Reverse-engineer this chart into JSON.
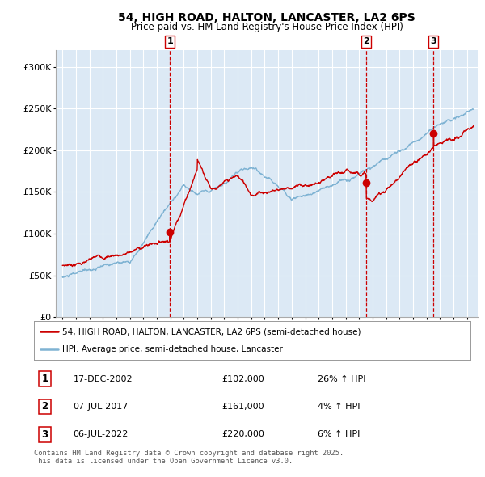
{
  "title": "54, HIGH ROAD, HALTON, LANCASTER, LA2 6PS",
  "subtitle": "Price paid vs. HM Land Registry's House Price Index (HPI)",
  "background_color": "#dce9f5",
  "plot_bg_color": "#dce9f5",
  "red_line_color": "#cc0000",
  "blue_line_color": "#7fb3d3",
  "sale_marker_color": "#cc0000",
  "vline_color_sold": "#cc0000",
  "ylim": [
    0,
    320000
  ],
  "yticks": [
    0,
    50000,
    100000,
    150000,
    200000,
    250000,
    300000
  ],
  "ytick_labels": [
    "£0",
    "£50K",
    "£100K",
    "£150K",
    "£200K",
    "£250K",
    "£300K"
  ],
  "legend_red_label": "54, HIGH ROAD, HALTON, LANCASTER, LA2 6PS (semi-detached house)",
  "legend_blue_label": "HPI: Average price, semi-detached house, Lancaster",
  "sale1_date": "17-DEC-2002",
  "sale1_price": "£102,000",
  "sale1_hpi": "26% ↑ HPI",
  "sale1_year": 2002.96,
  "sale1_price_val": 102000,
  "sale2_date": "07-JUL-2017",
  "sale2_price": "£161,000",
  "sale2_hpi": "4% ↑ HPI",
  "sale2_year": 2017.52,
  "sale2_price_val": 161000,
  "sale3_date": "06-JUL-2022",
  "sale3_price": "£220,000",
  "sale3_hpi": "6% ↑ HPI",
  "sale3_year": 2022.52,
  "sale3_price_val": 220000,
  "footnote1": "Contains HM Land Registry data © Crown copyright and database right 2025.",
  "footnote2": "This data is licensed under the Open Government Licence v3.0."
}
